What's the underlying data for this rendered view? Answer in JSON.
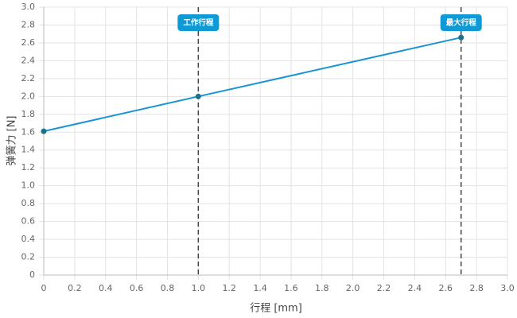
{
  "chart_data": {
    "type": "line",
    "x_label": "行程 [mm]",
    "y_label": "弹簧力 [N]",
    "x": [
      0,
      1.0,
      2.7
    ],
    "values": [
      1.61,
      2.0,
      2.66
    ],
    "color": "#1b95d2",
    "marker_color": "#1f6f8b",
    "xlim": [
      0,
      3
    ],
    "ylim": [
      0,
      3
    ],
    "xticks": [
      0,
      0.2,
      0.4,
      0.6,
      0.8,
      {
        "value": 1,
        "label": "1.0"
      },
      1.2,
      1.4,
      1.6,
      1.8,
      {
        "value": 2,
        "label": "2.0"
      },
      2.2,
      2.4,
      2.6,
      2.8,
      {
        "value": 3,
        "label": "3.0"
      }
    ],
    "yticks": [
      0,
      0.2,
      0.4,
      0.6,
      0.8,
      {
        "value": 1,
        "label": "1.0"
      },
      1.2,
      1.4,
      1.6,
      1.8,
      {
        "value": 2,
        "label": "2.0"
      },
      2.2,
      2.4,
      2.6,
      2.8,
      {
        "value": 3,
        "label": "3.0"
      }
    ],
    "grid": true,
    "annotations": [
      {
        "x": 1,
        "label": "工作行程"
      },
      {
        "x": 2.7,
        "label": "最大行程"
      }
    ],
    "annotation_color": "#0f9ad6"
  }
}
